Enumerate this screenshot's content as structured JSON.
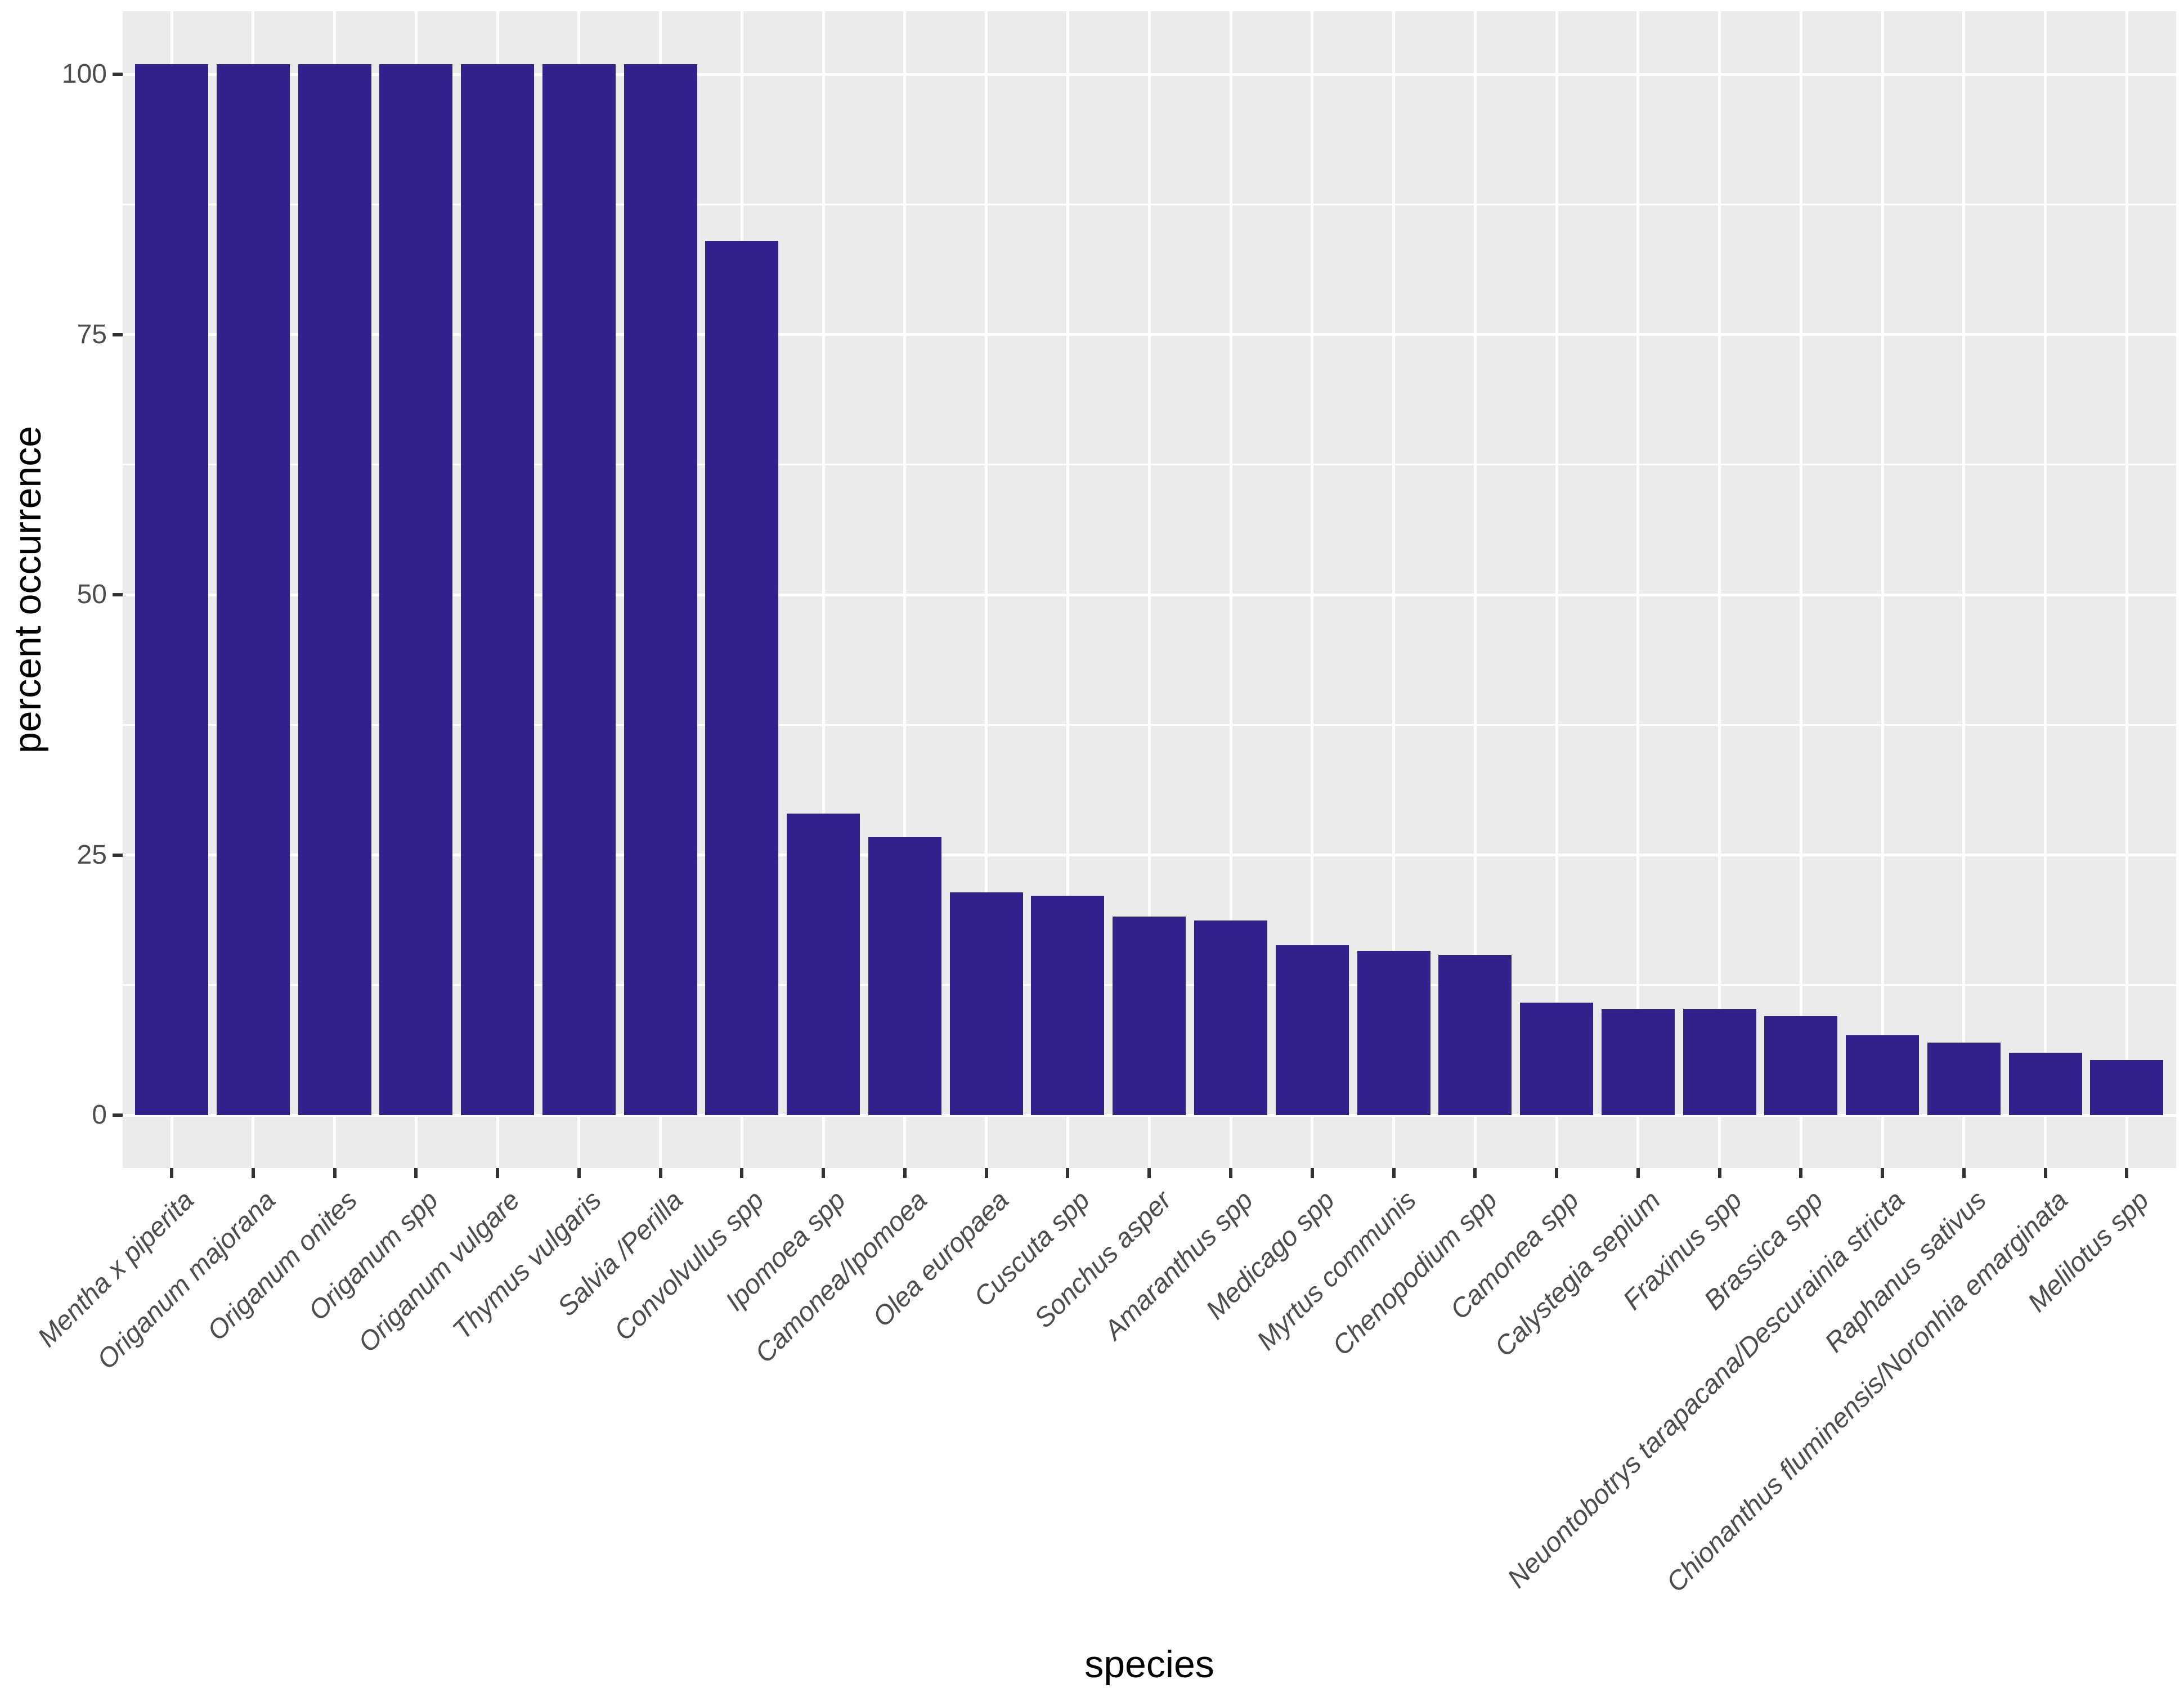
{
  "chart_data": {
    "type": "bar",
    "title": "",
    "xlabel": "species",
    "ylabel": "percent occurrence",
    "categories": [
      "Mentha x piperita",
      "Origanum majorana",
      "Origanum onites",
      "Origanum spp",
      "Origanum vulgare",
      "Thymus vulgaris",
      "Salvia /Perilla",
      "Convolvulus spp",
      "Ipomoea spp",
      "Camonea/Ipomoea",
      "Olea europaea",
      "Cuscuta spp",
      "Sonchus asper",
      "Amaranthus spp",
      "Medicago spp",
      "Myrtus communis",
      "Chenopodium spp",
      "Camonea spp",
      "Calystegia sepium",
      "Fraxinus spp",
      "Brassica spp",
      "Neuontobotrys tarapacana/Descurainia stricta",
      "Raphanus sativus",
      "Chionanthus fluminensis/Noronhia emarginata",
      "Melilotus spp"
    ],
    "values": [
      101,
      101,
      101,
      101,
      101,
      101,
      101,
      84,
      29,
      26.7,
      21.4,
      21.1,
      19.1,
      18.7,
      16.3,
      15.8,
      15.4,
      10.8,
      10.2,
      10.2,
      9.5,
      7.7,
      7,
      6,
      5.3
    ],
    "ytick_labels": [
      "0",
      "25",
      "50",
      "75",
      "100"
    ],
    "ytick_values": [
      0,
      25,
      50,
      75,
      100
    ],
    "yminor_values": [
      12.5,
      37.5,
      62.5,
      87.5
    ],
    "ylim": [
      -5,
      106
    ],
    "grid": true,
    "legend": "none",
    "colors": {
      "bar_fill": "#32218B",
      "panel_bg": "#EBEBEB",
      "grid_line": "#FFFFFF",
      "tick_text": "#4D4D4D",
      "axis_title_text": "#000000",
      "tick_mark": "#333333"
    }
  }
}
